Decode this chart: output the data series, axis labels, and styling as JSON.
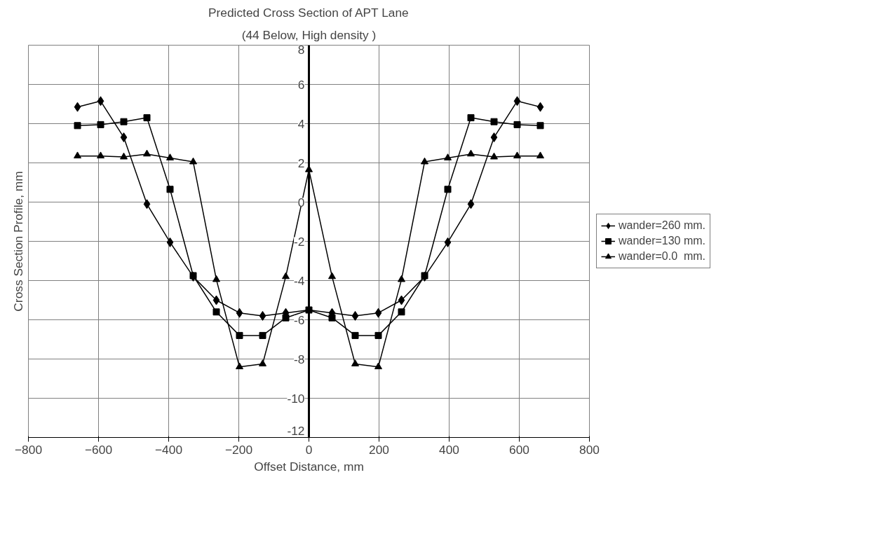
{
  "chart_data": {
    "type": "line",
    "title": "Predicted Cross Section of APT Lane",
    "subtitle": "(44 Below, High density )",
    "xlabel": "Offset Distance, mm",
    "ylabel": "Cross Section Profile, mm",
    "x": [
      -660,
      -594,
      -528,
      -462,
      -396,
      -330,
      -264,
      -198,
      -132,
      -66,
      0,
      66,
      132,
      198,
      264,
      330,
      396,
      462,
      528,
      594,
      660
    ],
    "series": [
      {
        "name": "wander=260 mm.",
        "color": "#000000",
        "marker": "diamond",
        "values": [
          4.85,
          5.15,
          3.3,
          -0.1,
          -2.05,
          -3.8,
          -5.0,
          -5.65,
          -5.8,
          -5.65,
          -5.5,
          -5.65,
          -5.8,
          -5.65,
          -5.0,
          -3.8,
          -2.05,
          -0.1,
          3.3,
          5.15,
          4.85
        ]
      },
      {
        "name": "wander=130 mm.",
        "color": "#000000",
        "marker": "square",
        "values": [
          3.9,
          3.95,
          4.1,
          4.3,
          0.65,
          -3.75,
          -5.6,
          -6.8,
          -6.8,
          -5.9,
          -5.5,
          -5.9,
          -6.8,
          -6.8,
          -5.6,
          -3.75,
          0.65,
          4.3,
          4.1,
          3.95,
          3.9
        ]
      },
      {
        "name": "wander=0.0  mm.",
        "color": "#000000",
        "marker": "triangle",
        "values": [
          2.35,
          2.35,
          2.3,
          2.45,
          2.25,
          2.05,
          -3.95,
          -8.4,
          -8.25,
          -3.8,
          1.65,
          -3.8,
          -8.25,
          -8.4,
          -3.95,
          2.05,
          2.25,
          2.45,
          2.3,
          2.35,
          2.35
        ]
      }
    ],
    "xlim": [
      -800,
      800
    ],
    "xticks": [
      -800,
      -600,
      -400,
      -200,
      0,
      200,
      400,
      600,
      800
    ],
    "ylim": [
      -12,
      8
    ],
    "yticks": [
      -12,
      -10,
      -8,
      -6,
      -4,
      -2,
      0,
      2,
      4,
      6,
      8
    ],
    "grid": true,
    "legend": "right",
    "line_style": "solid"
  }
}
